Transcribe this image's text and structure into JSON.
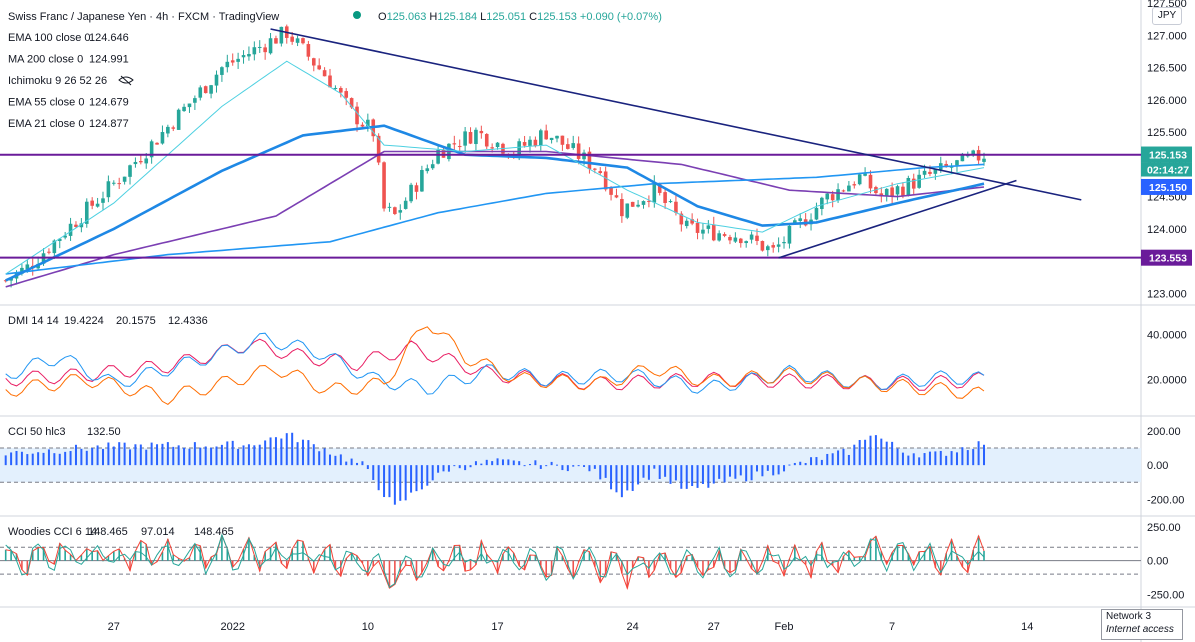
{
  "header": {
    "title": "Swiss Franc / Japanese Yen · 4h · FXCM · TradingView",
    "ohlc": {
      "open_label": "O",
      "open": "125.063",
      "high_label": "H",
      "high": "125.184",
      "low_label": "L",
      "low": "125.051",
      "close_label": "C",
      "close": "125.153",
      "change": "+0.090 (+0.07%)"
    },
    "currency": "JPY"
  },
  "indicators": [
    {
      "name": "EMA 100 close 0",
      "value": "124.646",
      "color": "#7b3fb3"
    },
    {
      "name": "MA 200 close 0",
      "value": "124.991",
      "color": "#2962ff"
    },
    {
      "name": "Ichimoku 9 26 52 26",
      "value": "",
      "color": "#9598a1"
    },
    {
      "name": "EMA 55 close 0",
      "value": "124.679",
      "color": "#2196f3"
    },
    {
      "name": "EMA 21 close 0",
      "value": "124.877",
      "color": "#2196f3"
    }
  ],
  "price_tags": {
    "last": "125.153",
    "countdown": "02:14:27",
    "ma_level": "125.150",
    "support": "123.553"
  },
  "chart_data": [
    {
      "type": "candlestick",
      "title": "Swiss Franc / Japanese Yen · 4h · FXCM",
      "xlabel": "",
      "ylabel": "JPY",
      "ylim": [
        122.85,
        127.55
      ],
      "yticks": [
        123.0,
        123.5,
        124.0,
        124.5,
        125.0,
        125.5,
        126.0,
        126.5,
        127.0,
        127.5
      ],
      "ytick_labels": [
        "123.000",
        "123.500",
        "124.000",
        "124.500",
        "125.000",
        "125.500",
        "126.000",
        "126.500",
        "127.000",
        "127.500"
      ],
      "x_labels": [
        "27",
        "2022",
        "10",
        "17",
        "24",
        "27",
        "Feb",
        "7",
        "14"
      ],
      "x_label_bar": [
        20,
        42,
        67,
        91,
        116,
        131,
        144,
        164,
        189
      ],
      "candles": 182,
      "anchors": [
        [
          0,
          123.2
        ],
        [
          4,
          123.4
        ],
        [
          20,
          124.7
        ],
        [
          28,
          125.4
        ],
        [
          40,
          126.5
        ],
        [
          52,
          127.05
        ],
        [
          60,
          126.3
        ],
        [
          64,
          125.8
        ],
        [
          68,
          125.5
        ],
        [
          70,
          124.3
        ],
        [
          72,
          124.2
        ],
        [
          80,
          125.2
        ],
        [
          87,
          125.5
        ],
        [
          94,
          125.2
        ],
        [
          100,
          125.5
        ],
        [
          110,
          124.9
        ],
        [
          114,
          124.3
        ],
        [
          120,
          124.6
        ],
        [
          126,
          124.0
        ],
        [
          136,
          123.9
        ],
        [
          142,
          123.65
        ],
        [
          146,
          124.0
        ],
        [
          152,
          124.5
        ],
        [
          158,
          124.8
        ],
        [
          162,
          124.5
        ],
        [
          170,
          124.8
        ],
        [
          176,
          125.0
        ],
        [
          181,
          125.15
        ]
      ],
      "horizontal_levels": [
        {
          "name": "resistance",
          "value": 125.15,
          "color": "#6a1b9a"
        },
        {
          "name": "support",
          "value": 123.553,
          "color": "#6a1b9a"
        }
      ],
      "trendlines": [
        {
          "name": "descending",
          "from": [
            49,
            127.1
          ],
          "to": [
            199,
            124.45
          ],
          "color": "#1a237e"
        },
        {
          "name": "ascending",
          "from": [
            143,
            123.55
          ],
          "to": [
            187,
            124.75
          ],
          "color": "#1a237e"
        }
      ],
      "series": [
        {
          "name": "EMA 100",
          "color": "#7b3fb3",
          "points": [
            [
              0,
              123.1
            ],
            [
              20,
              123.6
            ],
            [
              50,
              124.2
            ],
            [
              70,
              125.2
            ],
            [
              100,
              125.2
            ],
            [
              125,
              125.0
            ],
            [
              145,
              124.6
            ],
            [
              165,
              124.5
            ],
            [
              181,
              124.65
            ]
          ]
        },
        {
          "name": "MA 200",
          "color": "#2196f3",
          "points": [
            [
              0,
              123.3
            ],
            [
              30,
              123.6
            ],
            [
              60,
              123.8
            ],
            [
              80,
              124.25
            ],
            [
              100,
              124.55
            ],
            [
              120,
              124.7
            ],
            [
              150,
              124.8
            ],
            [
              170,
              124.95
            ],
            [
              181,
              125.0
            ]
          ]
        },
        {
          "name": "EMA 55",
          "color": "#1e88e5",
          "points": [
            [
              0,
              123.2
            ],
            [
              20,
              124.0
            ],
            [
              40,
              124.9
            ],
            [
              55,
              125.45
            ],
            [
              70,
              125.6
            ],
            [
              85,
              125.15
            ],
            [
              100,
              125.1
            ],
            [
              115,
              124.95
            ],
            [
              128,
              124.35
            ],
            [
              140,
              124.05
            ],
            [
              150,
              124.1
            ],
            [
              165,
              124.4
            ],
            [
              181,
              124.7
            ]
          ]
        },
        {
          "name": "EMA 21",
          "color": "#4dd0e1",
          "points": [
            [
              0,
              123.3
            ],
            [
              20,
              124.4
            ],
            [
              40,
              125.9
            ],
            [
              52,
              126.6
            ],
            [
              62,
              126.1
            ],
            [
              70,
              125.3
            ],
            [
              85,
              125.2
            ],
            [
              100,
              125.3
            ],
            [
              115,
              124.6
            ],
            [
              128,
              124.1
            ],
            [
              140,
              123.95
            ],
            [
              150,
              124.35
            ],
            [
              165,
              124.7
            ],
            [
              181,
              124.95
            ]
          ]
        }
      ]
    },
    {
      "type": "line",
      "title": "DMI 14 14",
      "values_label": [
        "19.4224",
        "20.1575",
        "12.4336"
      ],
      "ylim": [
        5,
        50
      ],
      "yticks": [
        20,
        40
      ],
      "ytick_labels": [
        "20.0000",
        "40.0000"
      ],
      "series": [
        {
          "name": "+DI",
          "color": "#e91e63",
          "points": [
            [
              0,
              20
            ],
            [
              15,
              22
            ],
            [
              30,
              26
            ],
            [
              40,
              32
            ],
            [
              45,
              36
            ],
            [
              55,
              30
            ],
            [
              65,
              27
            ],
            [
              75,
              34
            ],
            [
              80,
              30
            ],
            [
              90,
              22
            ],
            [
              110,
              18
            ],
            [
              130,
              20
            ],
            [
              150,
              19
            ],
            [
              170,
              18
            ],
            [
              181,
              20
            ]
          ]
        },
        {
          "name": "-DI",
          "color": "#2196f3",
          "points": [
            [
              0,
              22
            ],
            [
              10,
              30
            ],
            [
              20,
              18
            ],
            [
              35,
              28
            ],
            [
              48,
              38
            ],
            [
              58,
              32
            ],
            [
              68,
              20
            ],
            [
              78,
              16
            ],
            [
              90,
              24
            ],
            [
              100,
              20
            ],
            [
              115,
              22
            ],
            [
              130,
              16
            ],
            [
              145,
              23
            ],
            [
              160,
              18
            ],
            [
              175,
              21
            ],
            [
              181,
              20
            ]
          ]
        },
        {
          "name": "ADX",
          "color": "#ff6d00",
          "points": [
            [
              0,
              15
            ],
            [
              15,
              20
            ],
            [
              30,
              12
            ],
            [
              40,
              18
            ],
            [
              50,
              25
            ],
            [
              60,
              15
            ],
            [
              70,
              18
            ],
            [
              78,
              46
            ],
            [
              85,
              30
            ],
            [
              95,
              20
            ],
            [
              110,
              18
            ],
            [
              120,
              25
            ],
            [
              130,
              19
            ],
            [
              145,
              22
            ],
            [
              160,
              18
            ],
            [
              175,
              15
            ],
            [
              181,
              13
            ]
          ]
        }
      ]
    },
    {
      "type": "bar",
      "title": "CCI 50 hlc3",
      "value": "132.50",
      "ylim": [
        -280,
        270
      ],
      "yticks": [
        -200,
        0,
        200
      ],
      "ytick_labels": [
        "-200.00",
        "0.00",
        "200.00"
      ],
      "band": [
        -100,
        100
      ],
      "anchors": [
        [
          0,
          70
        ],
        [
          20,
          110
        ],
        [
          45,
          120
        ],
        [
          52,
          180
        ],
        [
          60,
          80
        ],
        [
          66,
          0
        ],
        [
          72,
          -250
        ],
        [
          76,
          -150
        ],
        [
          82,
          -20
        ],
        [
          90,
          20
        ],
        [
          100,
          0
        ],
        [
          108,
          -20
        ],
        [
          114,
          -170
        ],
        [
          120,
          -40
        ],
        [
          126,
          -150
        ],
        [
          134,
          -90
        ],
        [
          142,
          -40
        ],
        [
          148,
          20
        ],
        [
          156,
          80
        ],
        [
          160,
          190
        ],
        [
          166,
          80
        ],
        [
          172,
          60
        ],
        [
          181,
          132
        ]
      ]
    },
    {
      "type": "bar",
      "title": "Woodies CCI 6 14",
      "values_label": [
        "148.465",
        "97.014",
        "148.465"
      ],
      "ylim": [
        -330,
        310
      ],
      "yticks": [
        -250,
        0,
        250
      ],
      "ytick_labels": [
        "-250.00",
        "0.00",
        "250.00"
      ],
      "band": [
        -100,
        100
      ],
      "series": [
        {
          "name": "CCI 14",
          "color": "#f44336"
        },
        {
          "name": "CCI 6",
          "color": "#26a69a"
        }
      ]
    }
  ],
  "network": {
    "line1": "Network 3",
    "line2": "Internet access"
  }
}
